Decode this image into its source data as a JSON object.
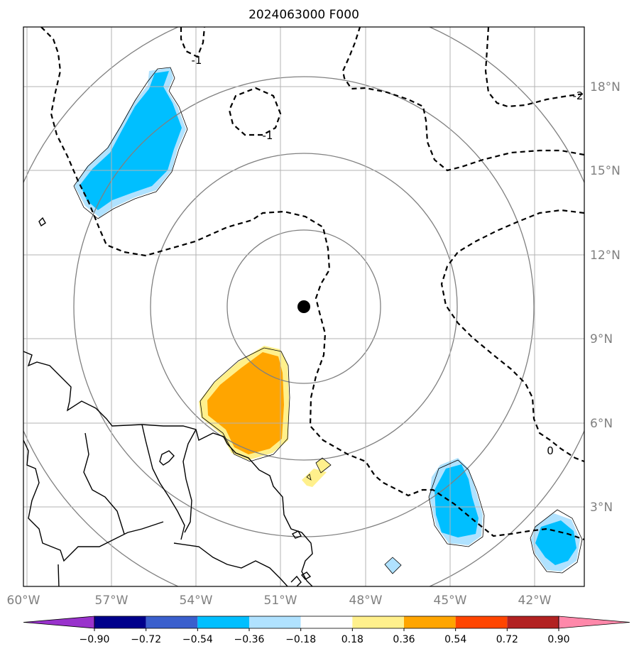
{
  "chart_data": {
    "type": "map",
    "title": "2024063000 F000",
    "lon_ticks": [
      "60°W",
      "57°W",
      "54°W",
      "51°W",
      "48°W",
      "45°W",
      "42°W"
    ],
    "lat_ticks": [
      "18°N",
      "15°N",
      "12°N",
      "9°N",
      "6°N",
      "3°N"
    ],
    "lon_range": [
      -60,
      -40
    ],
    "lat_range": [
      0,
      20
    ],
    "grid": true,
    "center": {
      "lon": -50.8,
      "lat": 10.2
    },
    "contour_labels": [
      "-1",
      "-1",
      "-2",
      "0"
    ],
    "colorbar": {
      "ticks": [
        "−0.90",
        "−0.72",
        "−0.54",
        "−0.36",
        "−0.18",
        "0.18",
        "0.36",
        "0.54",
        "0.72",
        "0.90"
      ],
      "colors": [
        "#9932cc",
        "#00008b",
        "#3a5fcd",
        "#00bfff",
        "#b0e2ff",
        "#ffffff",
        "#fff08c",
        "#ffa500",
        "#ff4500",
        "#b22222",
        "#ff88aa"
      ],
      "extend": "both"
    }
  }
}
